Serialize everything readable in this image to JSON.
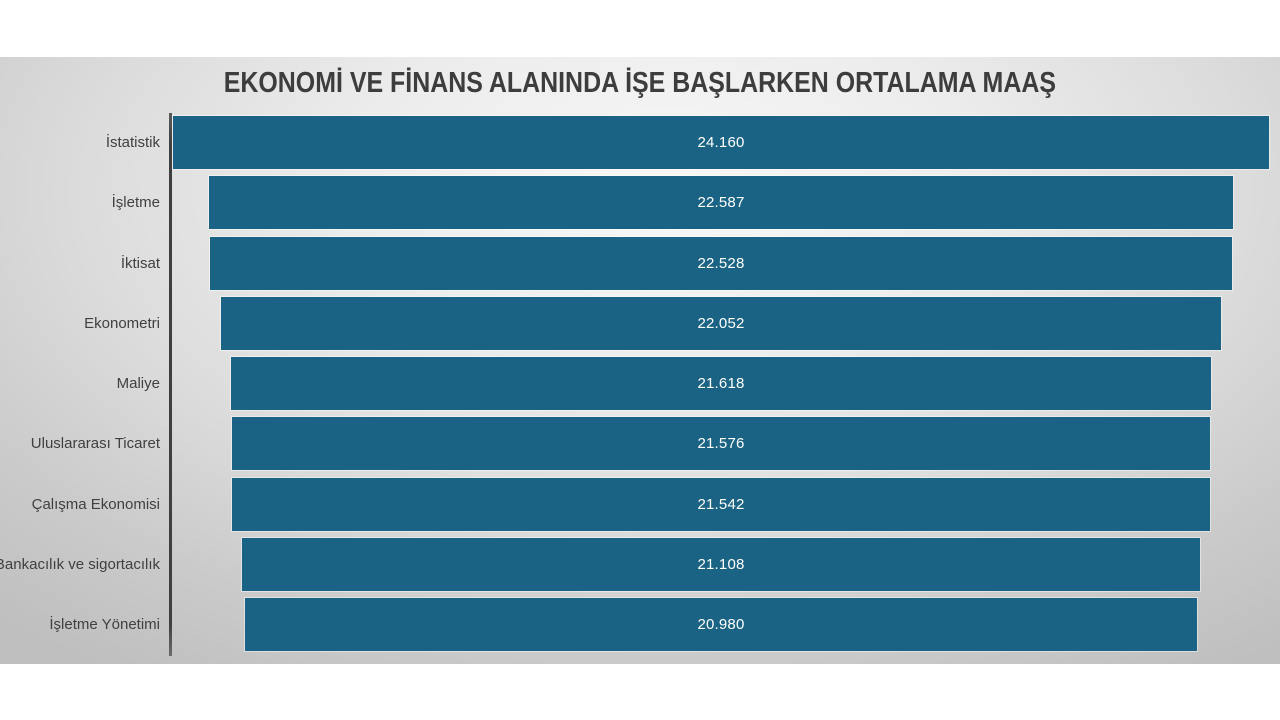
{
  "colors": {
    "bar": "#1a6384",
    "title_text": "#3d3d3d",
    "label_text": "#404040",
    "value_text": "#ffffff",
    "axis_line": "#3f3f3f",
    "slide_bg_center": "#f8f8f8",
    "slide_bg_edge": "#bfbfbf"
  },
  "chart_data": {
    "type": "bar",
    "orientation": "horizontal-centered-funnel",
    "title": "EKONOMİ VE FİNANS ALANINDA İŞE BAŞLARKEN ORTALAMA MAAŞ",
    "categories": [
      "İstatistik",
      "İşletme",
      "İktisat",
      "Ekonometri",
      "Maliye",
      "Uluslararası Ticaret",
      "Çalışma Ekonomisi",
      "Bankacılık ve sigortacılık",
      "İşletme Yönetimi"
    ],
    "values": [
      24160,
      22587,
      22528,
      22052,
      21618,
      21576,
      21542,
      21108,
      20980
    ],
    "values_display": [
      "24.160",
      "22.587",
      "22.528",
      "22.052",
      "21.618",
      "21.576",
      "21.542",
      "21.108",
      "20.980"
    ],
    "xlim": [
      0,
      24160
    ],
    "xlabel": "",
    "ylabel": "",
    "legend": "none",
    "grid": "off",
    "data_labels": "inside-center"
  }
}
